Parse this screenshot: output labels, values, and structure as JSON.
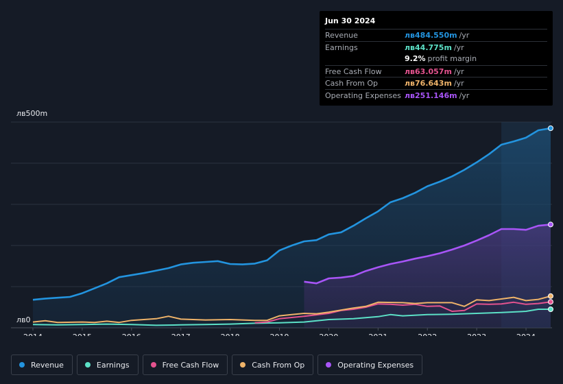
{
  "tooltip": {
    "date": "Jun 30 2024",
    "rows": [
      {
        "label": "Revenue",
        "value": "лв484.550m",
        "unit": "/yr",
        "color": "#2394df"
      },
      {
        "label": "Earnings",
        "value": "лв44.775m",
        "unit": "/yr",
        "color": "#5ce1c7"
      },
      {
        "label": "",
        "value": "9.2%",
        "unit": "profit margin",
        "color": "#ffffff"
      },
      {
        "label": "Free Cash Flow",
        "value": "лв63.057m",
        "unit": "/yr",
        "color": "#e4538f"
      },
      {
        "label": "Cash From Op",
        "value": "лв76.643m",
        "unit": "/yr",
        "color": "#f0b46a"
      },
      {
        "label": "Operating Expenses",
        "value": "лв251.146m",
        "unit": "/yr",
        "color": "#a855f7"
      }
    ]
  },
  "chart_data": {
    "type": "area",
    "title": "",
    "ylabel_top": "лв500m",
    "ylabel_bottom": "лв0",
    "ylim": [
      0,
      500
    ],
    "xlim": [
      2014,
      2024.5
    ],
    "x_ticks": [
      "2014",
      "2015",
      "2016",
      "2017",
      "2018",
      "2019",
      "2020",
      "2021",
      "2022",
      "2023",
      "2024"
    ],
    "x_tick_values": [
      2014,
      2015,
      2016,
      2017,
      2018,
      2019,
      2020,
      2021,
      2022,
      2023,
      2024
    ],
    "highlight_from": 2023.5,
    "series": [
      {
        "name": "Revenue",
        "color": "#2394df",
        "fill": true,
        "points": [
          [
            2014,
            68
          ],
          [
            2014.25,
            71
          ],
          [
            2014.5,
            73
          ],
          [
            2014.75,
            75
          ],
          [
            2015,
            84
          ],
          [
            2015.25,
            96
          ],
          [
            2015.5,
            108
          ],
          [
            2015.75,
            123
          ],
          [
            2016,
            128
          ],
          [
            2016.25,
            133
          ],
          [
            2016.5,
            139
          ],
          [
            2016.75,
            145
          ],
          [
            2017,
            154
          ],
          [
            2017.25,
            158
          ],
          [
            2017.5,
            160
          ],
          [
            2017.75,
            162
          ],
          [
            2018,
            155
          ],
          [
            2018.25,
            154
          ],
          [
            2018.5,
            156
          ],
          [
            2018.75,
            164
          ],
          [
            2019,
            188
          ],
          [
            2019.25,
            200
          ],
          [
            2019.5,
            210
          ],
          [
            2019.75,
            213
          ],
          [
            2020,
            227
          ],
          [
            2020.25,
            232
          ],
          [
            2020.5,
            248
          ],
          [
            2020.75,
            266
          ],
          [
            2021,
            283
          ],
          [
            2021.25,
            305
          ],
          [
            2021.5,
            315
          ],
          [
            2021.75,
            328
          ],
          [
            2022,
            344
          ],
          [
            2022.25,
            355
          ],
          [
            2022.5,
            368
          ],
          [
            2022.75,
            384
          ],
          [
            2023,
            402
          ],
          [
            2023.25,
            422
          ],
          [
            2023.5,
            445
          ],
          [
            2023.75,
            453
          ],
          [
            2024,
            462
          ],
          [
            2024.25,
            480
          ],
          [
            2024.5,
            485
          ]
        ]
      },
      {
        "name": "Earnings",
        "color": "#5ce1c7",
        "fill": false,
        "points": [
          [
            2014,
            8
          ],
          [
            2014.5,
            7
          ],
          [
            2015,
            8
          ],
          [
            2015.5,
            9
          ],
          [
            2016,
            8
          ],
          [
            2016.5,
            6
          ],
          [
            2017,
            7
          ],
          [
            2017.5,
            8
          ],
          [
            2018,
            9
          ],
          [
            2018.5,
            11
          ],
          [
            2019,
            12
          ],
          [
            2019.5,
            14
          ],
          [
            2020,
            20
          ],
          [
            2020.5,
            22
          ],
          [
            2021,
            27
          ],
          [
            2021.25,
            32
          ],
          [
            2021.5,
            29
          ],
          [
            2022,
            32
          ],
          [
            2022.5,
            33
          ],
          [
            2023,
            35
          ],
          [
            2023.5,
            37
          ],
          [
            2024,
            40
          ],
          [
            2024.25,
            45
          ],
          [
            2024.5,
            45
          ]
        ]
      },
      {
        "name": "Free Cash Flow",
        "color": "#e4538f",
        "fill": false,
        "points": [
          [
            2018.5,
            12
          ],
          [
            2018.75,
            14
          ],
          [
            2019,
            22
          ],
          [
            2019.5,
            28
          ],
          [
            2020,
            35
          ],
          [
            2020.25,
            42
          ],
          [
            2020.5,
            45
          ],
          [
            2020.75,
            50
          ],
          [
            2021,
            58
          ],
          [
            2021.25,
            57
          ],
          [
            2021.5,
            55
          ],
          [
            2021.75,
            57
          ],
          [
            2022,
            52
          ],
          [
            2022.25,
            53
          ],
          [
            2022.5,
            40
          ],
          [
            2022.75,
            42
          ],
          [
            2023,
            58
          ],
          [
            2023.25,
            57
          ],
          [
            2023.5,
            58
          ],
          [
            2023.75,
            62
          ],
          [
            2024,
            57
          ],
          [
            2024.25,
            59
          ],
          [
            2024.5,
            63
          ]
        ]
      },
      {
        "name": "Cash From Op",
        "color": "#f0b46a",
        "fill": false,
        "points": [
          [
            2014,
            14
          ],
          [
            2014.25,
            17
          ],
          [
            2014.5,
            13
          ],
          [
            2015,
            14
          ],
          [
            2015.25,
            13
          ],
          [
            2015.5,
            16
          ],
          [
            2015.75,
            13
          ],
          [
            2016,
            18
          ],
          [
            2016.5,
            22
          ],
          [
            2016.75,
            28
          ],
          [
            2017,
            21
          ],
          [
            2017.5,
            19
          ],
          [
            2018,
            20
          ],
          [
            2018.5,
            18
          ],
          [
            2018.75,
            18
          ],
          [
            2019,
            29
          ],
          [
            2019.25,
            32
          ],
          [
            2019.5,
            35
          ],
          [
            2019.75,
            34
          ],
          [
            2020,
            38
          ],
          [
            2020.5,
            48
          ],
          [
            2020.75,
            52
          ],
          [
            2021,
            62
          ],
          [
            2021.5,
            61
          ],
          [
            2021.75,
            59
          ],
          [
            2022,
            61
          ],
          [
            2022.5,
            61
          ],
          [
            2022.75,
            52
          ],
          [
            2023,
            68
          ],
          [
            2023.25,
            66
          ],
          [
            2023.5,
            70
          ],
          [
            2023.75,
            74
          ],
          [
            2024,
            66
          ],
          [
            2024.25,
            69
          ],
          [
            2024.5,
            77
          ]
        ]
      },
      {
        "name": "Operating Expenses",
        "color": "#a855f7",
        "fill": true,
        "points": [
          [
            2019.5,
            112
          ],
          [
            2019.75,
            108
          ],
          [
            2020,
            120
          ],
          [
            2020.25,
            122
          ],
          [
            2020.5,
            126
          ],
          [
            2020.75,
            138
          ],
          [
            2021,
            147
          ],
          [
            2021.25,
            155
          ],
          [
            2021.5,
            161
          ],
          [
            2021.75,
            168
          ],
          [
            2022,
            174
          ],
          [
            2022.25,
            181
          ],
          [
            2022.5,
            190
          ],
          [
            2022.75,
            200
          ],
          [
            2023,
            212
          ],
          [
            2023.25,
            225
          ],
          [
            2023.5,
            240
          ],
          [
            2023.75,
            240
          ],
          [
            2024,
            238
          ],
          [
            2024.25,
            248
          ],
          [
            2024.5,
            251
          ]
        ]
      }
    ]
  },
  "legend": [
    {
      "label": "Revenue",
      "color": "#2394df"
    },
    {
      "label": "Earnings",
      "color": "#5ce1c7"
    },
    {
      "label": "Free Cash Flow",
      "color": "#e4538f"
    },
    {
      "label": "Cash From Op",
      "color": "#f0b46a"
    },
    {
      "label": "Operating Expenses",
      "color": "#a855f7"
    }
  ]
}
